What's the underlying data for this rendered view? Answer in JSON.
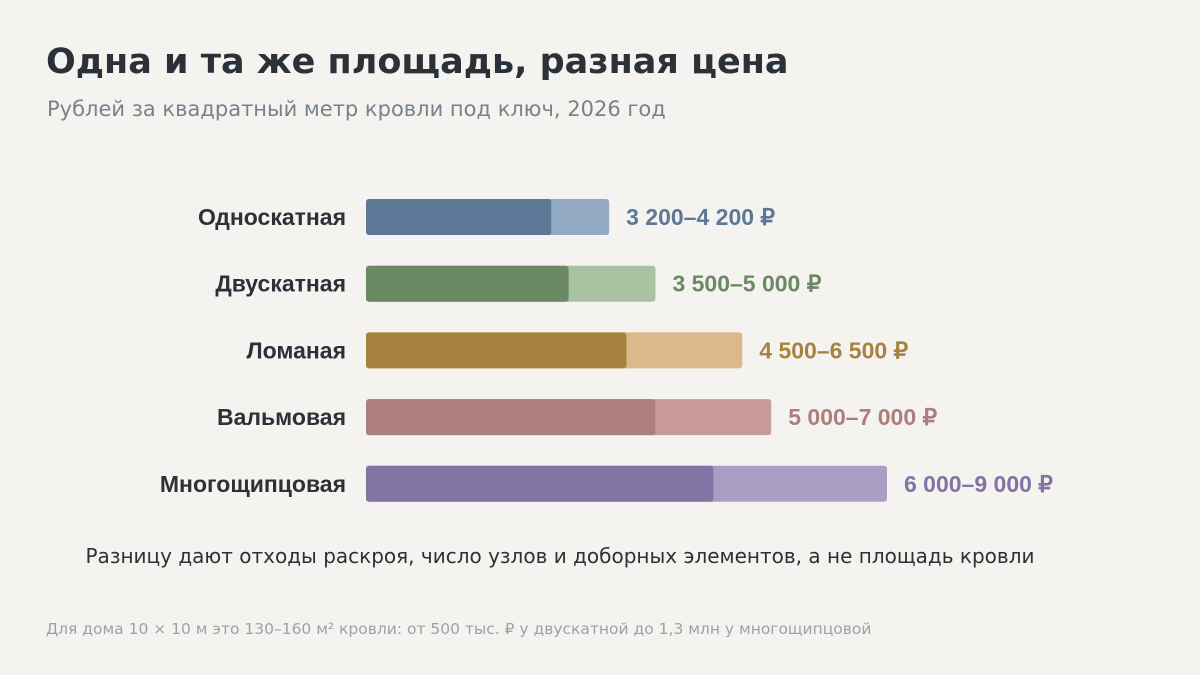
{
  "title": "Одна и та же площадь, разная цена",
  "subtitle": "Рублей за квадратный метр кровли под ключ, 2026 год",
  "takeaway": "Разницу дают отходы раскроя, число узлов и доборных элементов, а не площадь кровли",
  "footnote": "Для дома 10 × 10 м это 130–160 м² кровли: от 500 тыс. ₽ у двускатной до 1,3 млн у многощипцовой",
  "chart_data": {
    "type": "bar",
    "orientation": "horizontal",
    "value_type": "range",
    "unit": "₽ per m²",
    "categories": [
      "Односкатная",
      "Двускатная",
      "Ломаная",
      "Вальмовая",
      "Многощипцовая"
    ],
    "min": [
      3200,
      3500,
      4500,
      5000,
      6000
    ],
    "max": [
      4200,
      5000,
      6500,
      7000,
      9000
    ],
    "value_labels": [
      "3 200–4 200 ₽",
      "3 500–5 000 ₽",
      "4 500–6 500 ₽",
      "5 000–7 000 ₽",
      "6 000–9 000 ₽"
    ],
    "colors_dark": [
      "#5d7796",
      "#6b8a63",
      "#a8833f",
      "#ad7e7e",
      "#8074a5"
    ],
    "colors_light": [
      "#92a9c4",
      "#a9c2a2",
      "#dcb98c",
      "#c89a99",
      "#aa9ec4"
    ],
    "label_colors": [
      "#5d7796",
      "#6b8a63",
      "#a8833f",
      "#ad7e7e",
      "#8074a5"
    ],
    "xlim": [
      0,
      9000
    ],
    "grid": false,
    "legend": "none"
  }
}
